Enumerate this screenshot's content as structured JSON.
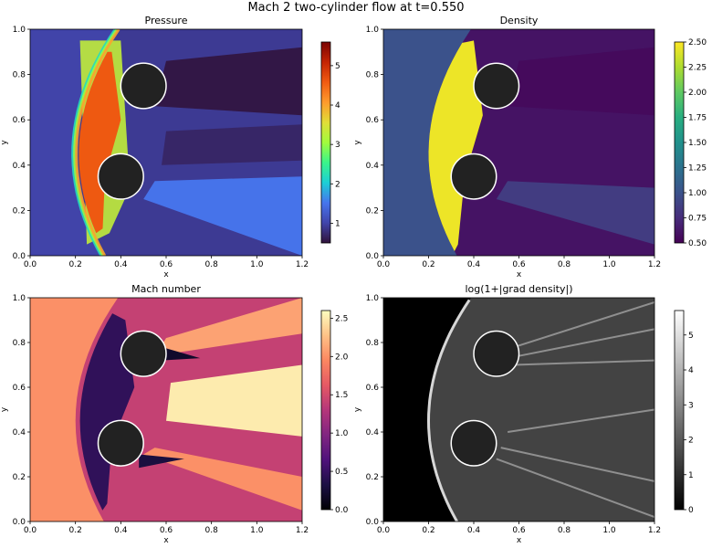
{
  "figure": {
    "title": "Mach 2 two-cylinder flow at t=0.550"
  },
  "chart_data": [
    {
      "type": "heatmap",
      "title": "Pressure",
      "xlabel": "x",
      "ylabel": "y",
      "xlim": [
        0.0,
        1.2
      ],
      "ylim": [
        0.0,
        1.0
      ],
      "xticks": [
        "0.0",
        "0.2",
        "0.4",
        "0.6",
        "0.8",
        "1.0",
        "1.2"
      ],
      "yticks": [
        "0.0",
        "0.2",
        "0.4",
        "0.6",
        "0.8",
        "1.0"
      ],
      "colormap": "turbo",
      "colorbar": {
        "range": [
          0.5,
          5.6
        ],
        "ticks": [
          "1",
          "2",
          "3",
          "4",
          "5"
        ],
        "tick_values": [
          1,
          2,
          3,
          4,
          5
        ]
      },
      "freestream_value": 1.0,
      "cylinders": [
        {
          "cx": 0.4,
          "cy": 0.35,
          "r": 0.1
        },
        {
          "cx": 0.5,
          "cy": 0.75,
          "r": 0.1
        }
      ]
    },
    {
      "type": "heatmap",
      "title": "Density",
      "xlabel": "x",
      "ylabel": "y",
      "xlim": [
        0.0,
        1.2
      ],
      "ylim": [
        0.0,
        1.0
      ],
      "xticks": [
        "0.0",
        "0.2",
        "0.4",
        "0.6",
        "0.8",
        "1.0",
        "1.2"
      ],
      "yticks": [
        "0.0",
        "0.2",
        "0.4",
        "0.6",
        "0.8",
        "1.0"
      ],
      "colormap": "viridis",
      "colorbar": {
        "range": [
          0.5,
          2.5
        ],
        "ticks": [
          "0.50",
          "0.75",
          "1.00",
          "1.25",
          "1.50",
          "1.75",
          "2.00",
          "2.25",
          "2.50"
        ],
        "tick_values": [
          0.5,
          0.75,
          1.0,
          1.25,
          1.5,
          1.75,
          2.0,
          2.25,
          2.5
        ]
      },
      "freestream_value": 1.0,
      "cylinders": [
        {
          "cx": 0.4,
          "cy": 0.35,
          "r": 0.1
        },
        {
          "cx": 0.5,
          "cy": 0.75,
          "r": 0.1
        }
      ]
    },
    {
      "type": "heatmap",
      "title": "Mach number",
      "xlabel": "x",
      "ylabel": "y",
      "xlim": [
        0.0,
        1.2
      ],
      "ylim": [
        0.0,
        1.0
      ],
      "xticks": [
        "0.0",
        "0.2",
        "0.4",
        "0.6",
        "0.8",
        "1.0",
        "1.2"
      ],
      "yticks": [
        "0.0",
        "0.2",
        "0.4",
        "0.6",
        "0.8",
        "1.0"
      ],
      "colormap": "magma",
      "colorbar": {
        "range": [
          0.0,
          2.6
        ],
        "ticks": [
          "0.0",
          "0.5",
          "1.0",
          "1.5",
          "2.0",
          "2.5"
        ],
        "tick_values": [
          0.0,
          0.5,
          1.0,
          1.5,
          2.0,
          2.5
        ]
      },
      "freestream_value": 2.0,
      "cylinders": [
        {
          "cx": 0.4,
          "cy": 0.35,
          "r": 0.1
        },
        {
          "cx": 0.5,
          "cy": 0.75,
          "r": 0.1
        }
      ]
    },
    {
      "type": "heatmap",
      "title": "log(1+|grad density|)",
      "xlabel": "x",
      "ylabel": "y",
      "xlim": [
        0.0,
        1.2
      ],
      "ylim": [
        0.0,
        1.0
      ],
      "xticks": [
        "0.0",
        "0.2",
        "0.4",
        "0.6",
        "0.8",
        "1.0",
        "1.2"
      ],
      "yticks": [
        "0.0",
        "0.2",
        "0.4",
        "0.6",
        "0.8",
        "1.0"
      ],
      "colormap": "gray",
      "colorbar": {
        "range": [
          0.0,
          5.7
        ],
        "ticks": [
          "0",
          "1",
          "2",
          "3",
          "4",
          "5"
        ],
        "tick_values": [
          0,
          1,
          2,
          3,
          4,
          5
        ]
      },
      "freestream_value": 0.0,
      "cylinders": [
        {
          "cx": 0.4,
          "cy": 0.35,
          "r": 0.1
        },
        {
          "cx": 0.5,
          "cy": 0.75,
          "r": 0.1
        }
      ]
    }
  ]
}
